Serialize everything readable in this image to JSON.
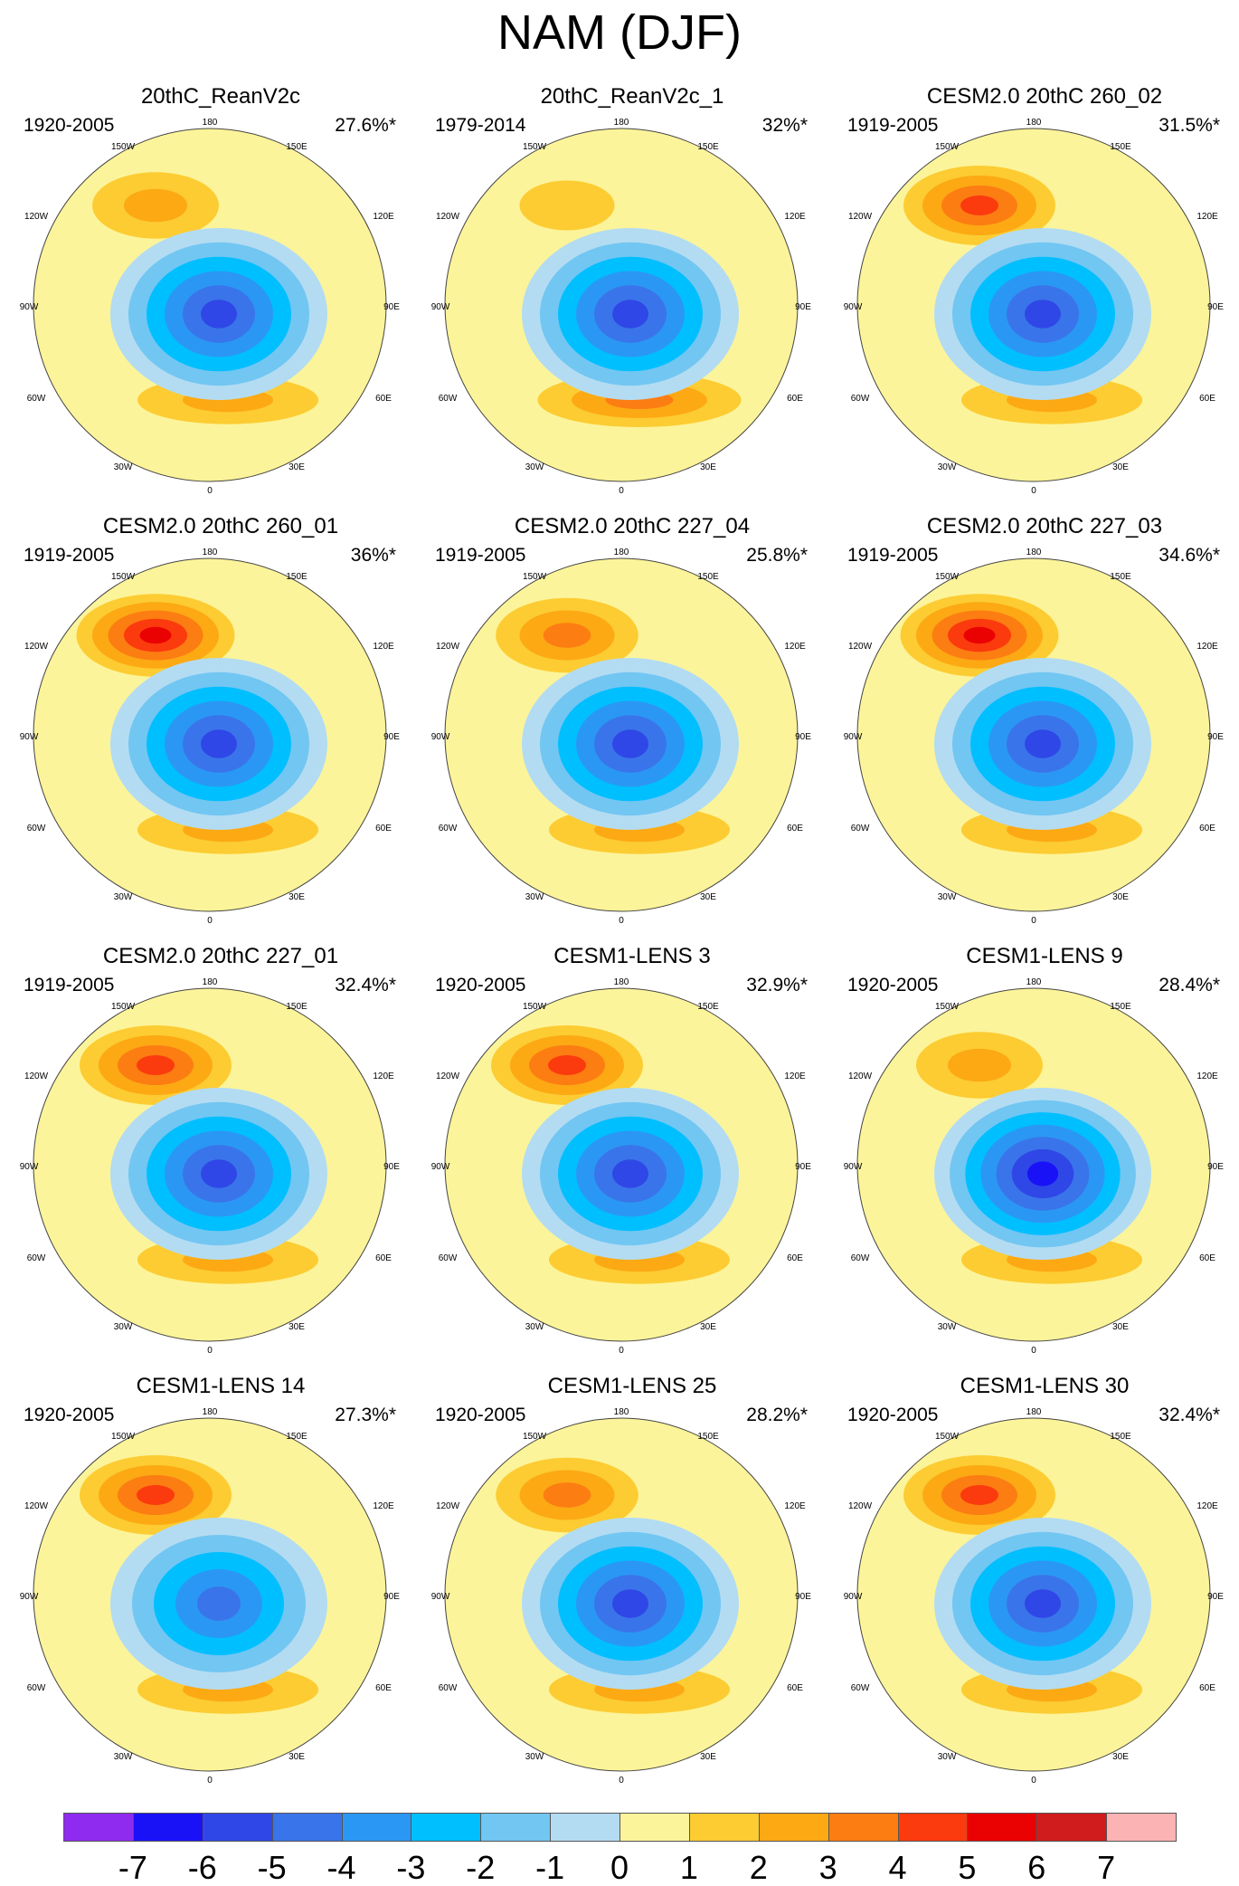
{
  "title": "NAM (DJF)",
  "longitude_labels": {
    "top": "180",
    "upper_left": "150W",
    "upper_right": "150E",
    "left_upper": "120W",
    "right_upper": "120E",
    "left": "90W",
    "right": "90E",
    "left_lower": "60W",
    "right_lower": "60E",
    "lower_left": "30W",
    "lower_right": "30E",
    "bottom": "0"
  },
  "panels": [
    {
      "title": "20thC_ReanV2c",
      "period": "1920-2005",
      "variance": "27.6%*",
      "pacific_high": 2.8,
      "atlantic_high": 2.4,
      "arctic_low": -5.5
    },
    {
      "title": "20thC_ReanV2c_1",
      "period": "1979-2014",
      "variance": "32%*",
      "pacific_high": 1.8,
      "atlantic_high": 3.2,
      "arctic_low": -6.0
    },
    {
      "title": "CESM2.0 20thC 260_02",
      "period": "1919-2005",
      "variance": "31.5%*",
      "pacific_high": 4.5,
      "atlantic_high": 2.6,
      "arctic_low": -5.6
    },
    {
      "title": "CESM2.0 20thC 260_01",
      "period": "1919-2005",
      "variance": "36%*",
      "pacific_high": 5.8,
      "atlantic_high": 2.4,
      "arctic_low": -5.7
    },
    {
      "title": "CESM2.0 20thC 227_04",
      "period": "1919-2005",
      "variance": "25.8%*",
      "pacific_high": 3.2,
      "atlantic_high": 2.8,
      "arctic_low": -5.3
    },
    {
      "title": "CESM2.0 20thC 227_03",
      "period": "1919-2005",
      "variance": "34.6%*",
      "pacific_high": 5.6,
      "atlantic_high": 2.7,
      "arctic_low": -5.8
    },
    {
      "title": "CESM2.0 20thC 227_01",
      "period": "1919-2005",
      "variance": "32.4%*",
      "pacific_high": 4.6,
      "atlantic_high": 2.7,
      "arctic_low": -5.6
    },
    {
      "title": "CESM1-LENS 3",
      "period": "1920-2005",
      "variance": "32.9%*",
      "pacific_high": 4.8,
      "atlantic_high": 2.3,
      "arctic_low": -5.5
    },
    {
      "title": "CESM1-LENS 9",
      "period": "1920-2005",
      "variance": "28.4%*",
      "pacific_high": 2.2,
      "atlantic_high": 2.6,
      "arctic_low": -6.6
    },
    {
      "title": "CESM1-LENS 14",
      "period": "1920-2005",
      "variance": "27.3%*",
      "pacific_high": 4.7,
      "atlantic_high": 2.2,
      "arctic_low": -5.0
    },
    {
      "title": "CESM1-LENS 25",
      "period": "1920-2005",
      "variance": "28.2%*",
      "pacific_high": 3.4,
      "atlantic_high": 2.8,
      "arctic_low": -5.7
    },
    {
      "title": "CESM1-LENS 30",
      "period": "1920-2005",
      "variance": "32.4%*",
      "pacific_high": 4.6,
      "atlantic_high": 2.4,
      "arctic_low": -5.2
    }
  ],
  "colorbar": {
    "levels": [
      -7,
      -6,
      -5,
      -4,
      -3,
      -2,
      -1,
      0,
      1,
      2,
      3,
      4,
      5,
      6,
      7
    ],
    "tick_labels": [
      "-7",
      "-6",
      "-5",
      "-4",
      "-3",
      "-2",
      "-1",
      "0",
      "1",
      "2",
      "3",
      "4",
      "5",
      "6",
      "7"
    ],
    "colors": [
      "#8f2bef",
      "#1a12f7",
      "#2f47e6",
      "#3a74ea",
      "#2b97f4",
      "#00bfff",
      "#72c6f2",
      "#b3dcf2",
      "#fcf49a",
      "#fccc32",
      "#fca914",
      "#fc7d12",
      "#fb3a0e",
      "#ea0202",
      "#d01c1c",
      "#fbb3b3"
    ]
  }
}
